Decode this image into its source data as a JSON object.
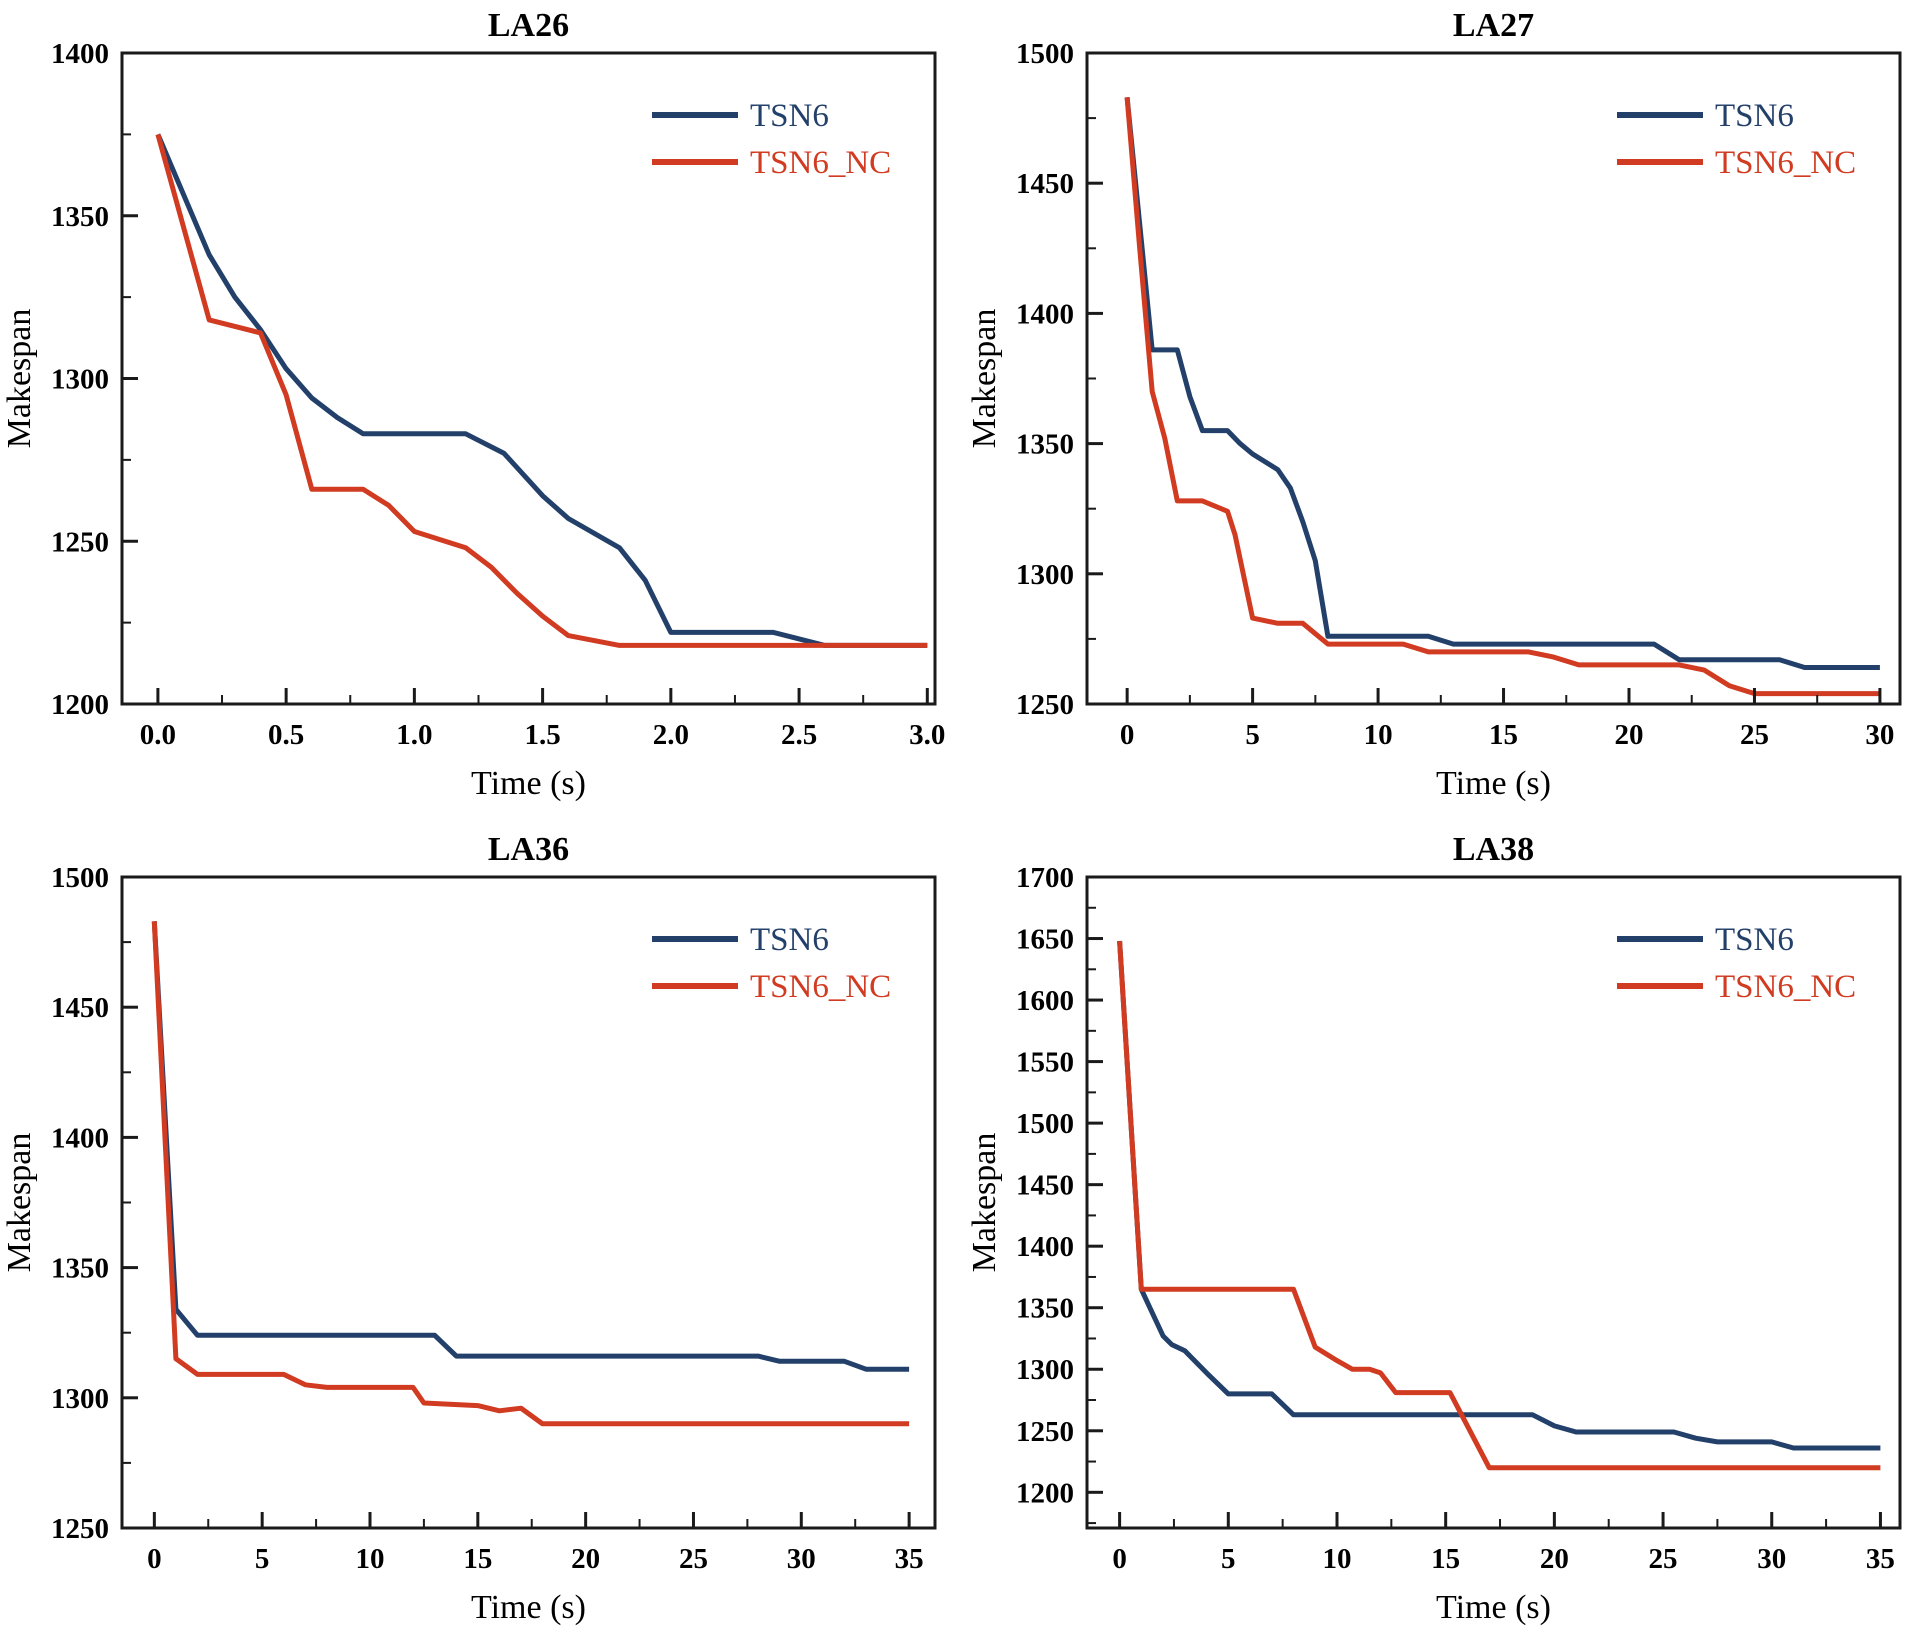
{
  "figure": {
    "series_names": [
      "TSN6",
      "TSN6_NC"
    ],
    "colors": {
      "TSN6": "#23406a",
      "TSN6_NC": "#d13b21",
      "axis": "#1a1a1a",
      "background": "#ffffff",
      "tick_label": "#000000"
    },
    "legend": {
      "labels": [
        "TSN6",
        "TSN6_NC"
      ],
      "position": "top-right"
    }
  },
  "chart_data": [
    {
      "type": "line",
      "title": "LA26",
      "xlabel": "Time (s)",
      "ylabel": "Makespan",
      "xlim": [
        -0.14,
        3.03
      ],
      "ylim": [
        1200,
        1400
      ],
      "xticks": [
        0.0,
        0.5,
        1.0,
        1.5,
        2.0,
        2.5,
        3.0
      ],
      "yticks": [
        1200,
        1250,
        1300,
        1350,
        1400
      ],
      "x_minor_step": 0.25,
      "y_minor_step": 25,
      "x_decimals": 1,
      "grid": false,
      "legend_position": "top-right",
      "series": [
        {
          "name": "TSN6",
          "x": [
            0,
            0.2,
            0.3,
            0.4,
            0.5,
            0.6,
            0.7,
            0.8,
            1.2,
            1.35,
            1.5,
            1.6,
            1.8,
            1.9,
            2.0,
            2.4,
            2.5,
            2.6,
            3.0
          ],
          "y": [
            1375,
            1338,
            1325,
            1315,
            1303,
            1294,
            1288,
            1283,
            1283,
            1277,
            1264,
            1257,
            1248,
            1238,
            1222,
            1222,
            1220,
            1218,
            1218
          ]
        },
        {
          "name": "TSN6_NC",
          "x": [
            0,
            0.2,
            0.4,
            0.5,
            0.6,
            0.8,
            0.9,
            1.0,
            1.2,
            1.3,
            1.4,
            1.5,
            1.6,
            1.8,
            3.0
          ],
          "y": [
            1375,
            1318,
            1314,
            1295,
            1266,
            1266,
            1261,
            1253,
            1248,
            1242,
            1234,
            1227,
            1221,
            1218,
            1218
          ]
        }
      ]
    },
    {
      "type": "line",
      "title": "LA27",
      "xlabel": "Time (s)",
      "ylabel": "Makespan",
      "xlim": [
        -1.6,
        30.8
      ],
      "ylim": [
        1250,
        1500
      ],
      "xticks": [
        0,
        5,
        10,
        15,
        20,
        25,
        30
      ],
      "yticks": [
        1250,
        1300,
        1350,
        1400,
        1450,
        1500
      ],
      "x_minor_step": 2.5,
      "y_minor_step": 25,
      "x_decimals": 0,
      "grid": false,
      "legend_position": "top-right",
      "series": [
        {
          "name": "TSN6",
          "x": [
            0,
            1,
            2,
            2.5,
            3,
            4,
            4.5,
            5,
            6,
            6.5,
            7,
            7.5,
            8,
            12,
            13,
            21,
            22,
            26,
            27,
            30
          ],
          "y": [
            1483,
            1386,
            1386,
            1368,
            1355,
            1355,
            1350,
            1346,
            1340,
            1333,
            1320,
            1305,
            1276,
            1276,
            1273,
            1273,
            1267,
            1267,
            1264,
            1264
          ]
        },
        {
          "name": "TSN6_NC",
          "x": [
            0,
            0.5,
            1,
            1.5,
            2,
            3,
            4,
            4.3,
            5,
            6,
            7,
            7.5,
            8,
            11,
            12,
            16,
            17,
            18,
            22,
            23,
            24,
            25,
            30
          ],
          "y": [
            1483,
            1425,
            1370,
            1352,
            1328,
            1328,
            1324,
            1315,
            1283,
            1281,
            1281,
            1277,
            1273,
            1273,
            1270,
            1270,
            1268,
            1265,
            1265,
            1263,
            1257,
            1254,
            1254
          ]
        }
      ]
    },
    {
      "type": "line",
      "title": "LA36",
      "xlabel": "Time (s)",
      "ylabel": "Makespan",
      "xlim": [
        -1.5,
        36.2
      ],
      "ylim": [
        1250,
        1500
      ],
      "xticks": [
        0,
        5,
        10,
        15,
        20,
        25,
        30,
        35
      ],
      "yticks": [
        1250,
        1300,
        1350,
        1400,
        1450,
        1500
      ],
      "x_minor_step": 2.5,
      "y_minor_step": 25,
      "x_decimals": 0,
      "grid": false,
      "legend_position": "top-right",
      "series": [
        {
          "name": "TSN6",
          "x": [
            0,
            1,
            2,
            13,
            14,
            28,
            29,
            32,
            33,
            35
          ],
          "y": [
            1483,
            1334,
            1324,
            1324,
            1316,
            1316,
            1314,
            1314,
            1311,
            1311
          ]
        },
        {
          "name": "TSN6_NC",
          "x": [
            0,
            1,
            2,
            6,
            7,
            8,
            12,
            12.5,
            15,
            16,
            17,
            18,
            35
          ],
          "y": [
            1483,
            1315,
            1309,
            1309,
            1305,
            1304,
            1304,
            1298,
            1297,
            1295,
            1296,
            1290,
            1290
          ]
        }
      ]
    },
    {
      "type": "line",
      "title": "LA38",
      "xlabel": "Time (s)",
      "ylabel": "Makespan",
      "xlim": [
        -1.5,
        35.9
      ],
      "ylim": [
        1171,
        1700
      ],
      "xticks": [
        0,
        5,
        10,
        15,
        20,
        25,
        30,
        35
      ],
      "yticks": [
        1200,
        1250,
        1300,
        1350,
        1400,
        1450,
        1500,
        1550,
        1600,
        1650,
        1700
      ],
      "x_minor_step": 2.5,
      "y_minor_step": 25,
      "x_decimals": 0,
      "grid": false,
      "legend_position": "top-right",
      "series": [
        {
          "name": "TSN6",
          "x": [
            0,
            1,
            2,
            2.4,
            3,
            4,
            5,
            7,
            8,
            19,
            20,
            21,
            25.5,
            26.5,
            27.5,
            30,
            31,
            35
          ],
          "y": [
            1648,
            1365,
            1327,
            1320,
            1315,
            1297,
            1280,
            1280,
            1263,
            1263,
            1254,
            1249,
            1249,
            1244,
            1241,
            1241,
            1236,
            1236
          ]
        },
        {
          "name": "TSN6_NC",
          "x": [
            0,
            1,
            8,
            9,
            10,
            10.7,
            11.5,
            12,
            12.7,
            15.2,
            17,
            35
          ],
          "y": [
            1648,
            1365,
            1365,
            1318,
            1307,
            1300,
            1300,
            1297,
            1281,
            1281,
            1220,
            1220
          ]
        }
      ]
    }
  ]
}
